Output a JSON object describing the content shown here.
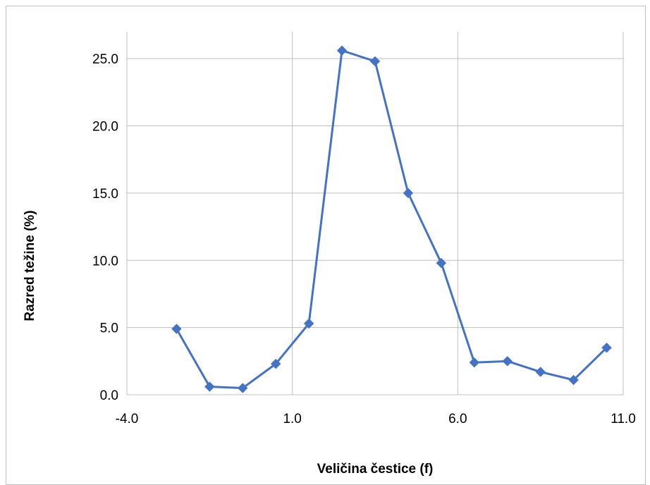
{
  "chart_data": {
    "type": "scatter",
    "title": "",
    "xlabel": "Veličina čestice (f)",
    "ylabel": "Razred težine  (%)",
    "xlim": [
      -4.0,
      11.0
    ],
    "ylim": [
      0.0,
      27.0
    ],
    "xticks": [
      "-4.0",
      "1.0",
      "6.0",
      "11.0"
    ],
    "xtick_values": [
      -4.0,
      1.0,
      6.0,
      11.0
    ],
    "yticks": [
      "0.0",
      "5.0",
      "10.0",
      "15.0",
      "20.0",
      "25.0"
    ],
    "ytick_values": [
      0.0,
      5.0,
      10.0,
      15.0,
      20.0,
      25.0
    ],
    "grid": true,
    "legend": "none",
    "series": [
      {
        "color": "#4472c4",
        "marker": "diamond",
        "line": "straight",
        "points": [
          {
            "x": -2.5,
            "y": 4.9
          },
          {
            "x": -1.5,
            "y": 0.6
          },
          {
            "x": -0.5,
            "y": 0.5
          },
          {
            "x": 0.5,
            "y": 2.3
          },
          {
            "x": 1.5,
            "y": 5.3
          },
          {
            "x": 2.5,
            "y": 25.6
          },
          {
            "x": 3.5,
            "y": 24.8
          },
          {
            "x": 4.5,
            "y": 15.0
          },
          {
            "x": 5.5,
            "y": 9.8
          },
          {
            "x": 6.5,
            "y": 2.4
          },
          {
            "x": 7.5,
            "y": 2.5
          },
          {
            "x": 8.5,
            "y": 1.7
          },
          {
            "x": 9.5,
            "y": 1.1
          },
          {
            "x": 10.5,
            "y": 3.5
          }
        ]
      }
    ]
  }
}
